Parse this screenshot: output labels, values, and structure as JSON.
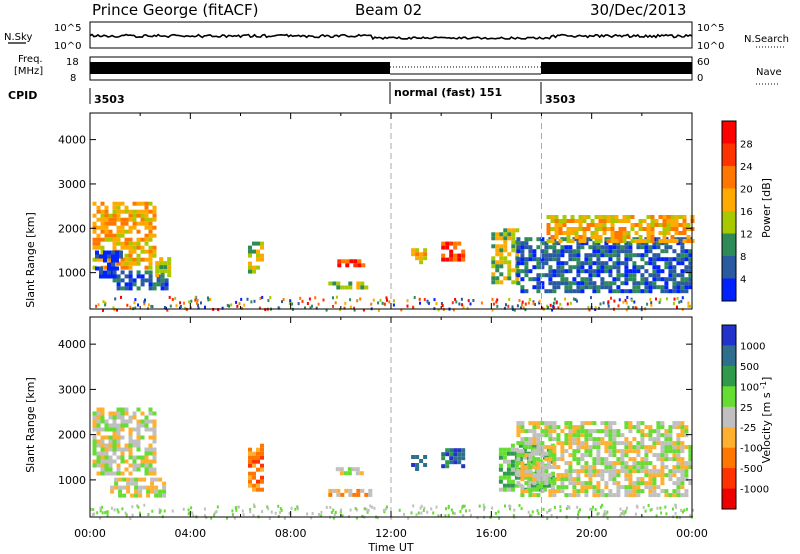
{
  "header": {
    "station": "Prince George (fitACF)",
    "beam": "Beam 02",
    "date": "30/Dec/2013"
  },
  "strip_labels": {
    "nsky": "N.Sky",
    "nsky_ticks": [
      "10^5",
      "10^0"
    ],
    "nsearch": "N.Search",
    "freq_line1": "Freq.",
    "freq_line2": "[MHz]",
    "freq_ticks": [
      "18",
      "8"
    ],
    "nave": "Nave",
    "nave_ticks": [
      "60",
      "0"
    ],
    "cpid": "CPID",
    "cpid_segments": [
      {
        "label": "3503",
        "start": 0,
        "end": 12
      },
      {
        "label": "normal (fast) 151",
        "start": 12,
        "end": 18
      },
      {
        "label": "3503",
        "start": 18,
        "end": 24
      }
    ]
  },
  "chart_data": [
    {
      "type": "heatmap",
      "name": "power",
      "ylabel": "Slant Range [km]",
      "ylim": [
        180,
        4600
      ],
      "yticks": [
        1000,
        2000,
        3000,
        4000
      ],
      "xlim": [
        0,
        24
      ],
      "xticks": [
        "00:00",
        "04:00",
        "08:00",
        "12:00",
        "16:00",
        "20:00",
        "00:00"
      ],
      "colorbar": {
        "label": "Power [dB]",
        "ticks": [
          "28",
          "24",
          "20",
          "16",
          "12",
          "8",
          "4"
        ],
        "colors": [
          "#ff0000",
          "#ff3300",
          "#ff7700",
          "#ffaa00",
          "#a8c800",
          "#2e8b57",
          "#2a5aa0",
          "#0022ff"
        ]
      },
      "regions": [
        {
          "t0": 0.1,
          "t1": 2.6,
          "r0": 1100,
          "r1": 2600,
          "level": 3
        },
        {
          "t0": 0.2,
          "t1": 1.2,
          "r0": 900,
          "r1": 1500,
          "level": 7
        },
        {
          "t0": 0.9,
          "t1": 3.0,
          "r0": 650,
          "r1": 1050,
          "level": 6
        },
        {
          "t0": 2.6,
          "t1": 3.1,
          "r0": 950,
          "r1": 1350,
          "level": 4
        },
        {
          "t0": 6.3,
          "t1": 6.8,
          "r0": 1000,
          "r1": 1700,
          "level": 4
        },
        {
          "t0": 9.5,
          "t1": 11.0,
          "r0": 650,
          "r1": 800,
          "level": 4
        },
        {
          "t0": 9.7,
          "t1": 10.9,
          "r0": 1180,
          "r1": 1300,
          "level": 1
        },
        {
          "t0": 12.8,
          "t1": 13.3,
          "r0": 1250,
          "r1": 1550,
          "level": 3
        },
        {
          "t0": 14.0,
          "t1": 14.8,
          "r0": 1300,
          "r1": 1700,
          "level": 1
        },
        {
          "t0": 16.0,
          "t1": 17.0,
          "r0": 800,
          "r1": 2000,
          "level": 4
        },
        {
          "t0": 17.0,
          "t1": 24.0,
          "r0": 600,
          "r1": 1800,
          "level": 6
        },
        {
          "t0": 18.2,
          "t1": 24.0,
          "r0": 1700,
          "r1": 2300,
          "level": 3
        }
      ]
    },
    {
      "type": "heatmap",
      "name": "velocity",
      "ylabel": "Slant Range [km]",
      "ylim": [
        180,
        4600
      ],
      "yticks": [
        1000,
        2000,
        3000,
        4000
      ],
      "xlim": [
        0,
        24
      ],
      "xticks": [
        "00:00",
        "04:00",
        "08:00",
        "12:00",
        "16:00",
        "20:00",
        "00:00"
      ],
      "xlabel": "Time UT",
      "colorbar": {
        "label": "Velocity [m s^-1]",
        "ticks": [
          "1000",
          "500",
          "100",
          "25",
          "-25",
          "-100",
          "-500",
          "-1000"
        ],
        "colors": [
          "#2233cc",
          "#2e6f8e",
          "#2e9a4a",
          "#66dd33",
          "#c0c0c0",
          "#ffb030",
          "#ff7700",
          "#ff3300",
          "#ee0000"
        ]
      },
      "regions": [
        {
          "t0": 0.1,
          "t1": 2.6,
          "r0": 1100,
          "r1": 2600,
          "level": 4
        },
        {
          "t0": 0.8,
          "t1": 3.0,
          "r0": 650,
          "r1": 1050,
          "level": 4
        },
        {
          "t0": 6.3,
          "t1": 6.9,
          "r0": 750,
          "r1": 1800,
          "level": 6
        },
        {
          "t0": 9.5,
          "t1": 11.2,
          "r0": 650,
          "r1": 800,
          "level": 5
        },
        {
          "t0": 9.8,
          "t1": 10.9,
          "r0": 1180,
          "r1": 1280,
          "level": 4
        },
        {
          "t0": 12.8,
          "t1": 13.3,
          "r0": 1250,
          "r1": 1550,
          "level": 1
        },
        {
          "t0": 14.0,
          "t1": 14.8,
          "r0": 1300,
          "r1": 1700,
          "level": 1
        },
        {
          "t0": 16.3,
          "t1": 18.5,
          "r0": 800,
          "r1": 1800,
          "level": 3
        },
        {
          "t0": 17.0,
          "t1": 24.0,
          "r0": 700,
          "r1": 2300,
          "level": 4
        }
      ]
    }
  ]
}
